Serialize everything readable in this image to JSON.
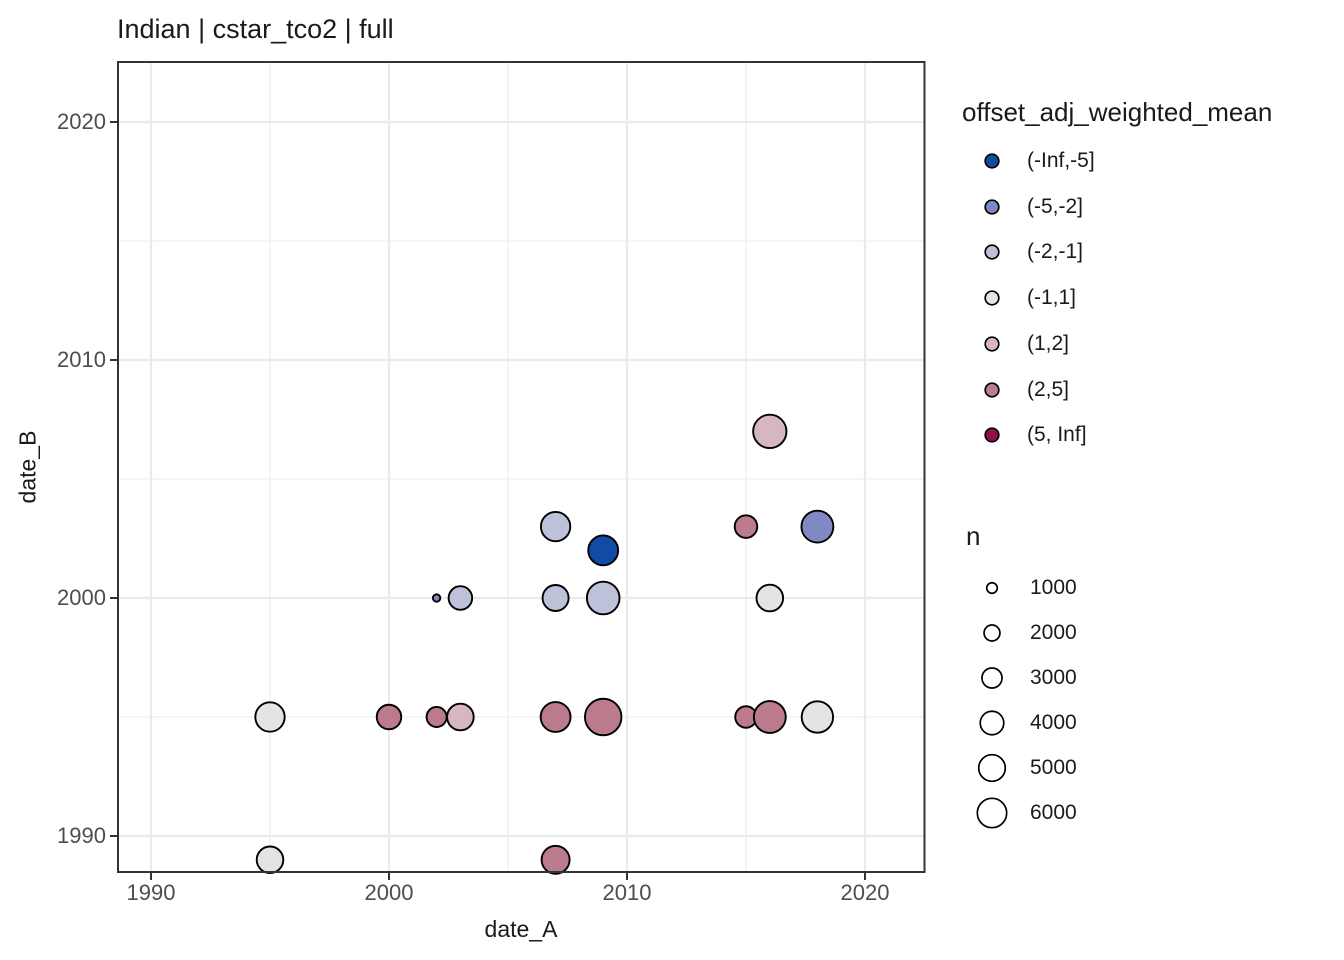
{
  "title": "Indian | cstar_tco2 | full",
  "chart_data": {
    "type": "scatter",
    "title": "Indian | cstar_tco2 | full",
    "xlabel": "date_A",
    "ylabel": "date_B",
    "x_ticks": [
      1990,
      2000,
      2010,
      2020
    ],
    "y_ticks": [
      1990,
      2000,
      2010,
      2020
    ],
    "minor_ticks": [
      1995,
      2005,
      2015
    ],
    "x_range": [
      1988.6,
      2022.5
    ],
    "y_range": [
      1988.5,
      2022.5
    ],
    "grid": true,
    "legend_position": "right",
    "panel_border_color": "#333333",
    "grid_major_color": "#ebebeb",
    "grid_minor_color": "#f2f2f2",
    "point_stroke_color": "#000000",
    "color_legend": {
      "title": "offset_adj_weighted_mean",
      "bins": [
        {
          "label": "(-Inf,-5]",
          "color": "#114ba6"
        },
        {
          "label": "(-5,-2]",
          "color": "#8089c4"
        },
        {
          "label": "(-2,-1]",
          "color": "#bdc1da"
        },
        {
          "label": "(-1,1]",
          "color": "#e4e4e4"
        },
        {
          "label": "(1,2]",
          "color": "#d6b6c0"
        },
        {
          "label": "(2,5]",
          "color": "#bc7b8c"
        },
        {
          "label": "(5, Inf]",
          "color": "#8e1048"
        }
      ]
    },
    "size_legend": {
      "title": "n",
      "values": [
        1000,
        2000,
        3000,
        4000,
        5000,
        6000
      ]
    },
    "points": [
      {
        "date_A": 1995,
        "date_B": 1989,
        "bin": "(-1,1]",
        "n": 5000
      },
      {
        "date_A": 2007,
        "date_B": 1989,
        "bin": "(2,5]",
        "n": 5500
      },
      {
        "date_A": 1995,
        "date_B": 1995,
        "bin": "(-1,1]",
        "n": 6000
      },
      {
        "date_A": 2000,
        "date_B": 1995,
        "bin": "(2,5]",
        "n": 4300
      },
      {
        "date_A": 2002,
        "date_B": 1995,
        "bin": "(2,5]",
        "n": 3000
      },
      {
        "date_A": 2003,
        "date_B": 1995,
        "bin": "(1,2]",
        "n": 5000
      },
      {
        "date_A": 2007,
        "date_B": 1995,
        "bin": "(2,5]",
        "n": 6200
      },
      {
        "date_A": 2009,
        "date_B": 1995,
        "bin": "(2,5]",
        "n": 9000
      },
      {
        "date_A": 2015,
        "date_B": 1995,
        "bin": "(2,5]",
        "n": 3400
      },
      {
        "date_A": 2016,
        "date_B": 1995,
        "bin": "(2,5]",
        "n": 7000
      },
      {
        "date_A": 2018,
        "date_B": 1995,
        "bin": "(-1,1]",
        "n": 6800
      },
      {
        "date_A": 2002,
        "date_B": 2000,
        "bin": "(-5,-2]",
        "n": 570
      },
      {
        "date_A": 2003,
        "date_B": 2000,
        "bin": "(-2,-1]",
        "n": 4000
      },
      {
        "date_A": 2007,
        "date_B": 2000,
        "bin": "(-2,-1]",
        "n": 4800
      },
      {
        "date_A": 2009,
        "date_B": 2000,
        "bin": "(-2,-1]",
        "n": 7300
      },
      {
        "date_A": 2016,
        "date_B": 2000,
        "bin": "(-1,1]",
        "n": 5000
      },
      {
        "date_A": 2009,
        "date_B": 2002,
        "bin": "(-Inf,-5]",
        "n": 6200
      },
      {
        "date_A": 2007,
        "date_B": 2003,
        "bin": "(-2,-1]",
        "n": 6000
      },
      {
        "date_A": 2015,
        "date_B": 2003,
        "bin": "(2,5]",
        "n": 3700
      },
      {
        "date_A": 2018,
        "date_B": 2003,
        "bin": "(-5,-2]",
        "n": 7000
      },
      {
        "date_A": 2016,
        "date_B": 2007,
        "bin": "(1,2]",
        "n": 7600
      }
    ]
  }
}
